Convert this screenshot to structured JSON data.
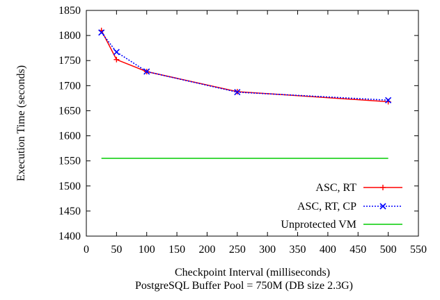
{
  "chart_data": {
    "type": "line",
    "xlabel": "Checkpoint Interval (milliseconds)",
    "subtitle": "PostgreSQL Buffer Pool = 750M (DB size 2.3G)",
    "ylabel": "Execution Time (seconds)",
    "xlim": [
      0,
      550
    ],
    "ylim": [
      1400,
      1850
    ],
    "xticks": [
      0,
      50,
      100,
      150,
      200,
      250,
      300,
      350,
      400,
      450,
      500,
      550
    ],
    "yticks": [
      1400,
      1450,
      1500,
      1550,
      1600,
      1650,
      1700,
      1750,
      1800,
      1850
    ],
    "grid": false,
    "legend_position": "bottom-right",
    "series": [
      {
        "name": "ASC, RT",
        "color": "#ff0000",
        "line_style": "solid",
        "marker": "plus",
        "points": [
          [
            25,
            1810
          ],
          [
            50,
            1752
          ],
          [
            100,
            1728
          ],
          [
            250,
            1688
          ],
          [
            500,
            1668
          ]
        ]
      },
      {
        "name": "ASC, RT, CP",
        "color": "#0000ff",
        "line_style": "dotted",
        "marker": "x",
        "points": [
          [
            25,
            1806
          ],
          [
            50,
            1767
          ],
          [
            100,
            1728
          ],
          [
            250,
            1687
          ],
          [
            500,
            1671
          ]
        ]
      },
      {
        "name": "Unprotected VM",
        "color": "#00cc00",
        "line_style": "solid",
        "marker": "none",
        "points": [
          [
            25,
            1555
          ],
          [
            500,
            1555
          ]
        ]
      }
    ]
  }
}
